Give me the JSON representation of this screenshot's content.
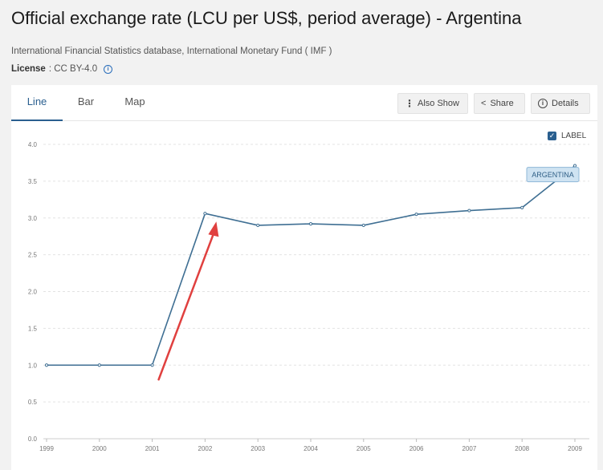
{
  "header": {
    "title": "Official exchange rate (LCU per US$, period average) - Argentina",
    "source": "International Financial Statistics database, International Monetary Fund ( IMF )",
    "license_label": "License",
    "license_value": ": CC BY-4.0"
  },
  "tabs": [
    {
      "label": "Line",
      "active": true
    },
    {
      "label": "Bar",
      "active": false
    },
    {
      "label": "Map",
      "active": false
    }
  ],
  "toolbar": {
    "also_show": "Also Show",
    "share": "Share",
    "details": "Details"
  },
  "label_toggle": {
    "label": "LABEL",
    "checked": true
  },
  "colors": {
    "line": "#3f6f93",
    "arrow": "#e0403f",
    "accent": "#2a5f8f",
    "label_bg": "#cfe3f2"
  },
  "chart_data": {
    "type": "line",
    "x": [
      "1999",
      "2000",
      "2001",
      "2002",
      "2003",
      "2004",
      "2005",
      "2006",
      "2007",
      "2008",
      "2009"
    ],
    "series": [
      {
        "name": "ARGENTINA",
        "values": [
          1.0,
          1.0,
          1.0,
          3.06,
          2.9,
          2.92,
          2.9,
          3.05,
          3.1,
          3.14,
          3.71
        ]
      }
    ],
    "yticks": [
      "0.0",
      "0.5",
      "1.0",
      "1.5",
      "2.0",
      "2.5",
      "3.0",
      "3.5",
      "4.0"
    ],
    "ylim": [
      0,
      4
    ],
    "grid": true,
    "annotation": "red arrow pointing to 2002 value"
  }
}
